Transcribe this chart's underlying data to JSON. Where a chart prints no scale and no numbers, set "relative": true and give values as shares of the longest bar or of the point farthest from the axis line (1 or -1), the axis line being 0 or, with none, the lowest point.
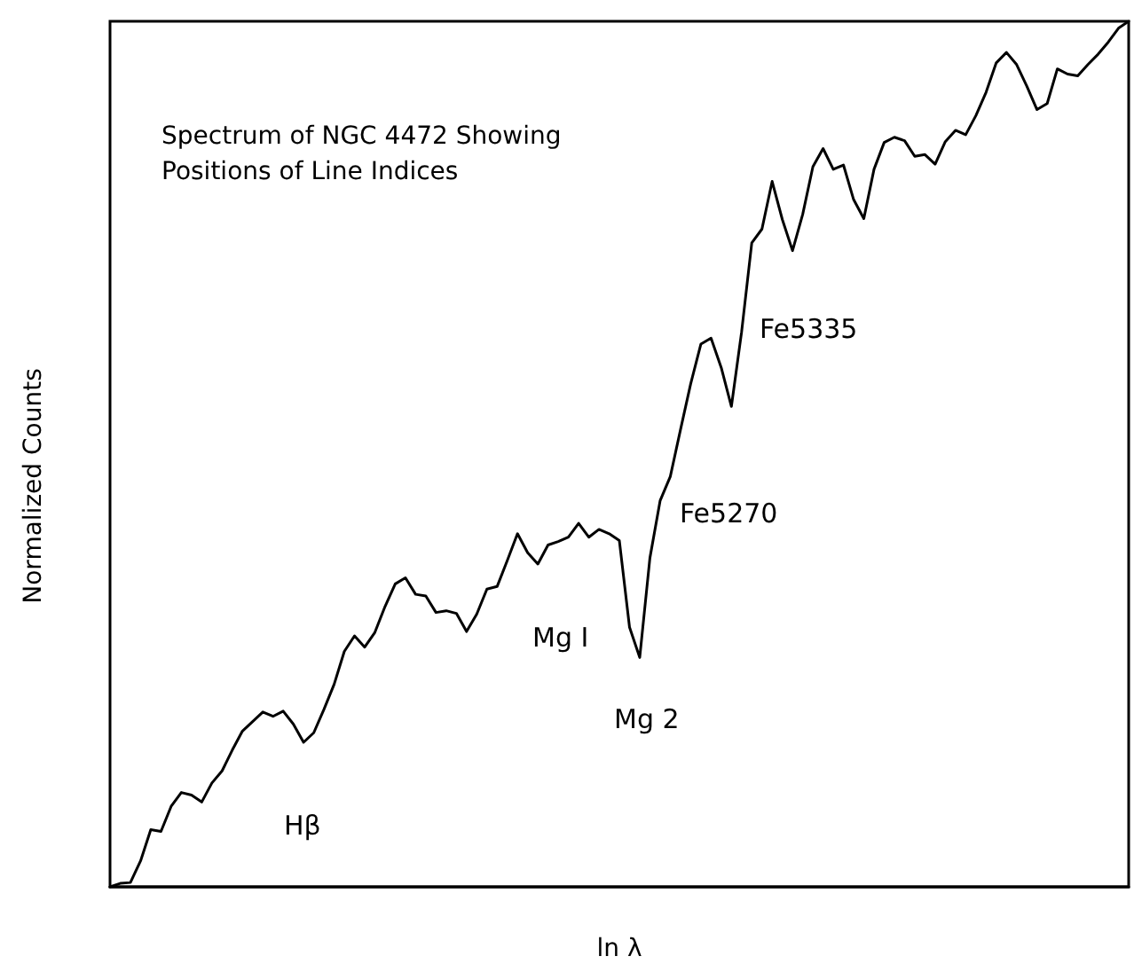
{
  "chart_data": {
    "type": "line",
    "relative": true,
    "title": "Spectrum of NGC 4472 Showing Positions of Line Indices",
    "xlabel": "ln λ",
    "ylabel": "Normalized Counts",
    "categories": [
      null,
      null,
      null,
      null,
      null,
      null,
      null,
      null,
      null,
      null,
      null,
      null,
      null,
      null,
      null,
      null,
      null,
      null,
      null,
      null,
      null,
      null,
      null,
      null,
      null,
      null,
      null,
      null,
      null,
      null,
      null,
      null,
      null,
      null,
      null,
      null,
      null,
      null,
      null,
      null,
      null,
      null,
      null,
      null,
      null,
      null,
      null,
      null,
      null,
      null,
      null,
      null,
      null,
      null,
      null,
      null,
      null,
      null,
      null,
      null,
      null,
      null,
      null,
      null,
      null,
      null,
      null,
      null,
      null,
      null,
      null,
      null,
      null,
      null,
      null,
      null,
      null,
      null,
      null,
      null,
      null,
      null,
      null,
      null,
      null,
      null,
      null,
      null,
      null,
      null,
      null,
      null,
      null,
      null,
      null,
      null,
      null,
      null,
      null,
      null,
      null
    ],
    "series": [
      {
        "color": "#000000",
        "values": [
          0,
          0.004,
          0.005,
          0.03,
          0.066,
          0.064,
          0.093,
          0.109,
          0.106,
          0.098,
          0.12,
          0.134,
          0.158,
          0.18,
          0.191,
          0.202,
          0.197,
          0.203,
          0.188,
          0.167,
          0.178,
          0.205,
          0.234,
          0.272,
          0.29,
          0.277,
          0.294,
          0.324,
          0.35,
          0.357,
          0.338,
          0.336,
          0.317,
          0.319,
          0.316,
          0.295,
          0.315,
          0.344,
          0.347,
          0.377,
          0.408,
          0.386,
          0.373,
          0.395,
          0.399,
          0.404,
          0.42,
          0.404,
          0.413,
          0.408,
          0.4,
          0.3,
          0.265,
          0.38,
          0.446,
          0.474,
          0.528,
          0.581,
          0.627,
          0.634,
          0.6,
          0.555,
          0.641,
          0.744,
          0.76,
          0.815,
          0.771,
          0.735,
          0.777,
          0.832,
          0.853,
          0.829,
          0.834,
          0.794,
          0.772,
          0.829,
          0.86,
          0.866,
          0.862,
          0.844,
          0.846,
          0.835,
          0.861,
          0.874,
          0.869,
          0.891,
          0.918,
          0.952,
          0.964,
          0.95,
          0.925,
          0.898,
          0.905,
          0.945,
          0.939,
          0.937,
          0.95,
          0.962,
          0.976,
          0.992,
          1.0
        ]
      }
    ],
    "annotations": [
      "Hβ",
      "Mg I",
      "Mg 2",
      "Fe5270",
      "Fe5335"
    ],
    "marker": "none",
    "line_style": "solid"
  }
}
